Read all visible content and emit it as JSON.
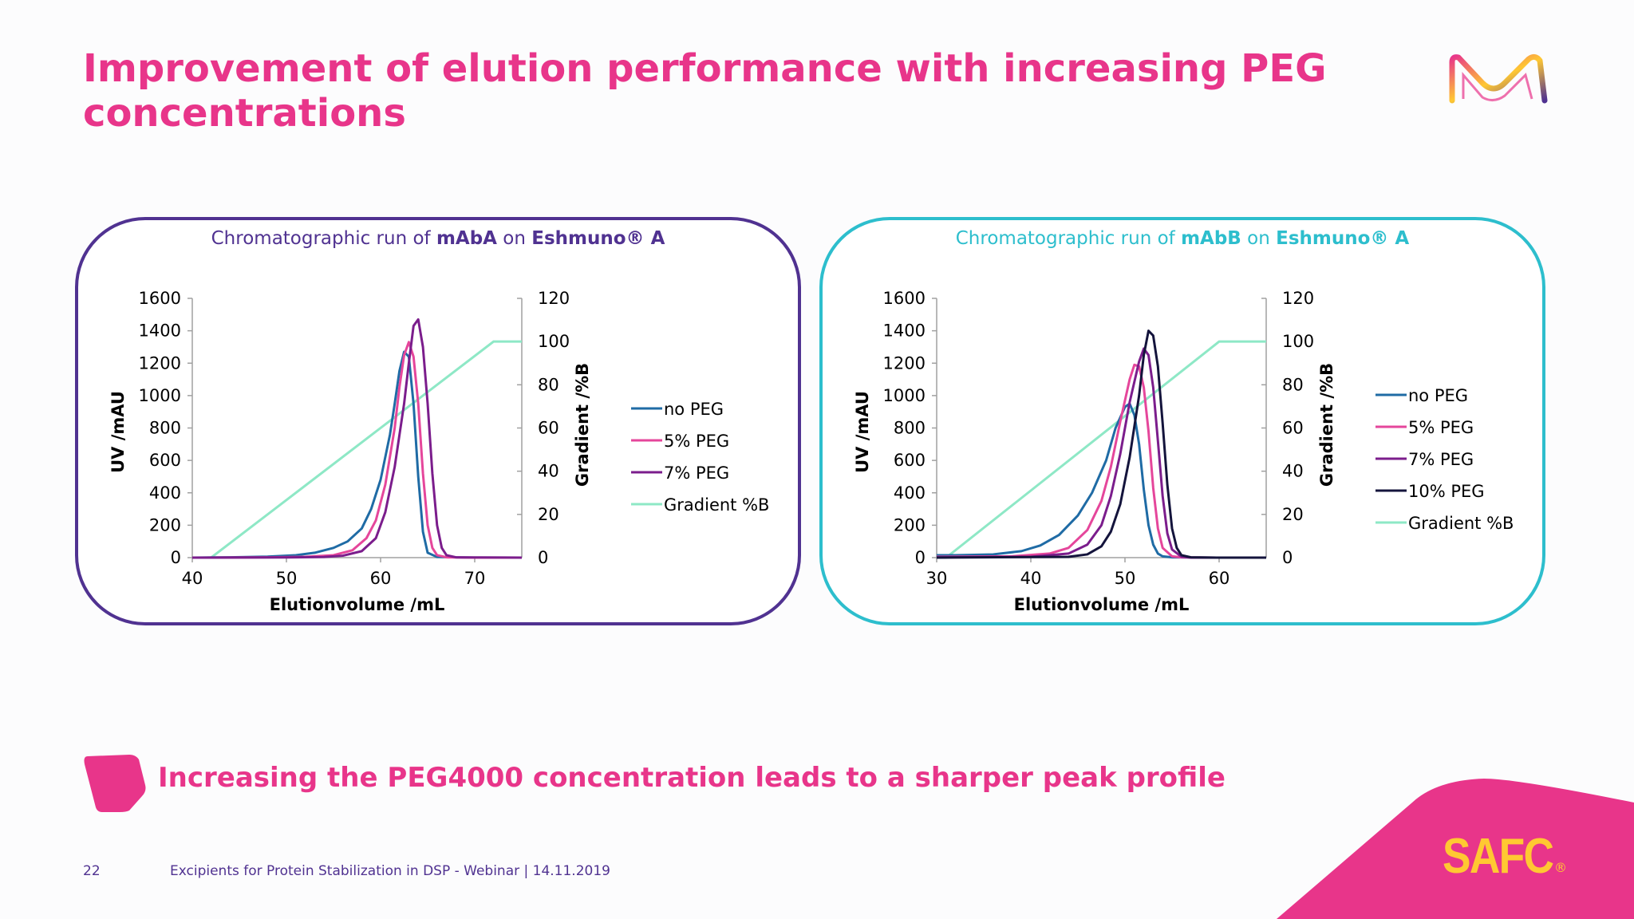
{
  "slide": {
    "title": "Improvement of elution performance with increasing PEG concentrations",
    "banner": "Increasing the PEG4000 concentration leads to a sharper peak profile",
    "page_number": "22",
    "footer": "Excipients for Protein Stabilization in DSP - Webinar | 14.11.2019",
    "brand": "SAFC",
    "brand_mark": "®"
  },
  "colors": {
    "title": "#e8358a",
    "panel_a": "#503291",
    "panel_b": "#2dbecd",
    "no_peg": "#1f6ba5",
    "peg5": "#e5469b",
    "peg7": "#7b1d8c",
    "peg10": "#14143c",
    "gradient": "#8ee8c6",
    "brand_yellow": "#ffc832"
  },
  "chart_data": [
    {
      "type": "line",
      "title_parts": [
        "Chromatographic run of ",
        "mAbA",
        " on ",
        "Eshmuno® A"
      ],
      "xlabel": "Elutionvolume /mL",
      "ylabel": "UV /mAU",
      "y2label": "Gradient /%B",
      "xlim": [
        40,
        75
      ],
      "ylim": [
        0,
        1600
      ],
      "y2lim": [
        0,
        120
      ],
      "x_ticks": [
        40,
        50,
        60,
        70
      ],
      "y_ticks": [
        0,
        200,
        400,
        600,
        800,
        1000,
        1200,
        1400,
        1600
      ],
      "y2_ticks": [
        0,
        20,
        40,
        60,
        80,
        100,
        120
      ],
      "legend": [
        "no PEG",
        "5% PEG",
        "7% PEG",
        "Gradient %B"
      ],
      "series": [
        {
          "name": "no PEG",
          "axis": "left",
          "x": [
            40,
            44,
            48,
            51,
            53,
            55,
            56.5,
            58,
            59,
            60,
            61,
            61.5,
            62,
            62.5,
            63,
            63.5,
            64,
            64.5,
            65,
            66,
            70,
            75
          ],
          "values": [
            0,
            2,
            6,
            15,
            30,
            60,
            100,
            180,
            300,
            480,
            760,
            950,
            1150,
            1270,
            1240,
            950,
            500,
            160,
            30,
            4,
            0,
            0
          ]
        },
        {
          "name": "5% PEG",
          "axis": "left",
          "x": [
            40,
            48,
            52,
            55,
            57,
            58.5,
            59.5,
            60.5,
            61.5,
            62,
            62.5,
            63,
            63.5,
            64,
            64.5,
            65,
            65.5,
            66,
            67,
            70,
            75
          ],
          "values": [
            0,
            2,
            5,
            15,
            45,
            120,
            230,
            450,
            800,
            1050,
            1250,
            1330,
            1240,
            950,
            520,
            200,
            60,
            15,
            2,
            0,
            0
          ]
        },
        {
          "name": "7% PEG",
          "axis": "left",
          "x": [
            40,
            50,
            54,
            56,
            58,
            59.5,
            60.5,
            61.5,
            62.5,
            63,
            63.5,
            64,
            64.5,
            65,
            65.5,
            66,
            66.5,
            67,
            68,
            75
          ],
          "values": [
            0,
            1,
            4,
            12,
            40,
            120,
            280,
            560,
            950,
            1200,
            1430,
            1470,
            1300,
            950,
            520,
            200,
            60,
            15,
            2,
            0
          ]
        }
      ],
      "gradient": {
        "name": "Gradient %B",
        "axis": "right",
        "x": [
          40,
          42,
          72,
          75
        ],
        "values": [
          0,
          0,
          100,
          100
        ]
      }
    },
    {
      "type": "line",
      "title_parts": [
        "Chromatographic run of ",
        "mAbB",
        " on ",
        "Eshmuno® A"
      ],
      "xlabel": "Elutionvolume /mL",
      "ylabel": "UV /mAU",
      "y2label": "Gradient /%B",
      "xlim": [
        30,
        65
      ],
      "ylim": [
        0,
        1600
      ],
      "y2lim": [
        0,
        120
      ],
      "x_ticks": [
        30,
        40,
        50,
        60
      ],
      "y_ticks": [
        0,
        200,
        400,
        600,
        800,
        1000,
        1200,
        1400,
        1600
      ],
      "y2_ticks": [
        0,
        20,
        40,
        60,
        80,
        100,
        120
      ],
      "legend": [
        "no PEG",
        "5% PEG",
        "7% PEG",
        "10% PEG",
        "Gradient %B"
      ],
      "series": [
        {
          "name": "no PEG",
          "axis": "left",
          "x": [
            30,
            32,
            36,
            39,
            41,
            43,
            45,
            46.5,
            48,
            49,
            50,
            50.5,
            51,
            51.5,
            52,
            52.5,
            53,
            53.5,
            54,
            55,
            60,
            65
          ],
          "values": [
            15,
            15,
            20,
            40,
            75,
            140,
            260,
            400,
            600,
            800,
            930,
            950,
            880,
            700,
            420,
            200,
            80,
            25,
            8,
            2,
            0,
            0
          ]
        },
        {
          "name": "5% PEG",
          "axis": "left",
          "x": [
            30,
            38,
            42,
            44,
            46,
            47.5,
            48.5,
            49.5,
            50.5,
            51,
            51.5,
            52,
            52.5,
            53,
            53.5,
            54,
            55,
            56,
            60,
            65
          ],
          "values": [
            5,
            8,
            25,
            60,
            170,
            350,
            560,
            840,
            1100,
            1190,
            1180,
            1050,
            780,
            430,
            180,
            60,
            8,
            2,
            0,
            0
          ]
        },
        {
          "name": "7% PEG",
          "axis": "left",
          "x": [
            30,
            40,
            44,
            46,
            47.5,
            48.5,
            49.5,
            50.5,
            51.5,
            52,
            52.5,
            53,
            53.5,
            54,
            54.5,
            55,
            56,
            57,
            60,
            65
          ],
          "values": [
            2,
            5,
            25,
            80,
            200,
            380,
            640,
            960,
            1210,
            1290,
            1250,
            1050,
            720,
            380,
            150,
            50,
            6,
            0,
            0,
            0
          ]
        },
        {
          "name": "10% PEG",
          "axis": "left",
          "x": [
            30,
            44,
            46,
            47.5,
            48.5,
            49.5,
            50.5,
            51.5,
            52,
            52.5,
            53,
            53.5,
            54,
            54.5,
            55,
            55.5,
            56,
            57,
            60,
            65
          ],
          "values": [
            0,
            5,
            20,
            70,
            160,
            330,
            620,
            1000,
            1250,
            1400,
            1370,
            1180,
            830,
            450,
            180,
            60,
            15,
            2,
            0,
            0
          ]
        }
      ],
      "gradient": {
        "name": "Gradient %B",
        "axis": "right",
        "x": [
          30,
          31,
          60,
          65
        ],
        "values": [
          0,
          0,
          100,
          100
        ]
      }
    }
  ]
}
